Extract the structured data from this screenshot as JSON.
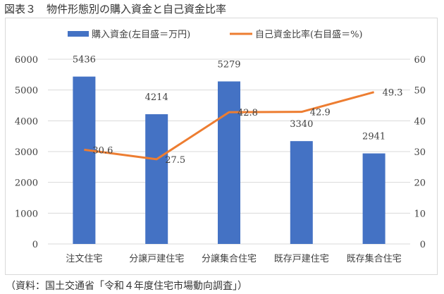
{
  "title": "図表３　物件形態別の購入資金と自己資金比率",
  "source": "（資料：国土交通省「令和４年度住宅市場動向調査」）",
  "colors": {
    "bar": "#4472c4",
    "line": "#ed7d31",
    "grid": "#d9d9d9",
    "text": "#404040"
  },
  "legend": {
    "bar_label": "購入資金(左目盛＝万円)",
    "line_label": "自己資金比率(右目盛＝%)"
  },
  "chart_data": {
    "type": "bar+line",
    "title": "物件形態別の購入資金と自己資金比率",
    "categories": [
      "注文住宅",
      "分譲戸建住宅",
      "分譲集合住宅",
      "既存戸建住宅",
      "既存集合住宅"
    ],
    "series": [
      {
        "name": "購入資金(左目盛＝万円)",
        "type": "bar",
        "axis": "left",
        "values": [
          5436,
          4214,
          5279,
          3340,
          2941
        ]
      },
      {
        "name": "自己資金比率(右目盛＝%)",
        "type": "line",
        "axis": "right",
        "values": [
          30.6,
          27.5,
          42.8,
          42.9,
          49.3
        ]
      }
    ],
    "y_left": {
      "min": 0,
      "max": 6000,
      "ticks": [
        0,
        1000,
        2000,
        3000,
        4000,
        5000,
        6000
      ]
    },
    "y_right": {
      "min": 0,
      "max": 60,
      "ticks": [
        0,
        10,
        20,
        30,
        40,
        50,
        60
      ]
    },
    "grid": true,
    "legend_position": "top"
  }
}
